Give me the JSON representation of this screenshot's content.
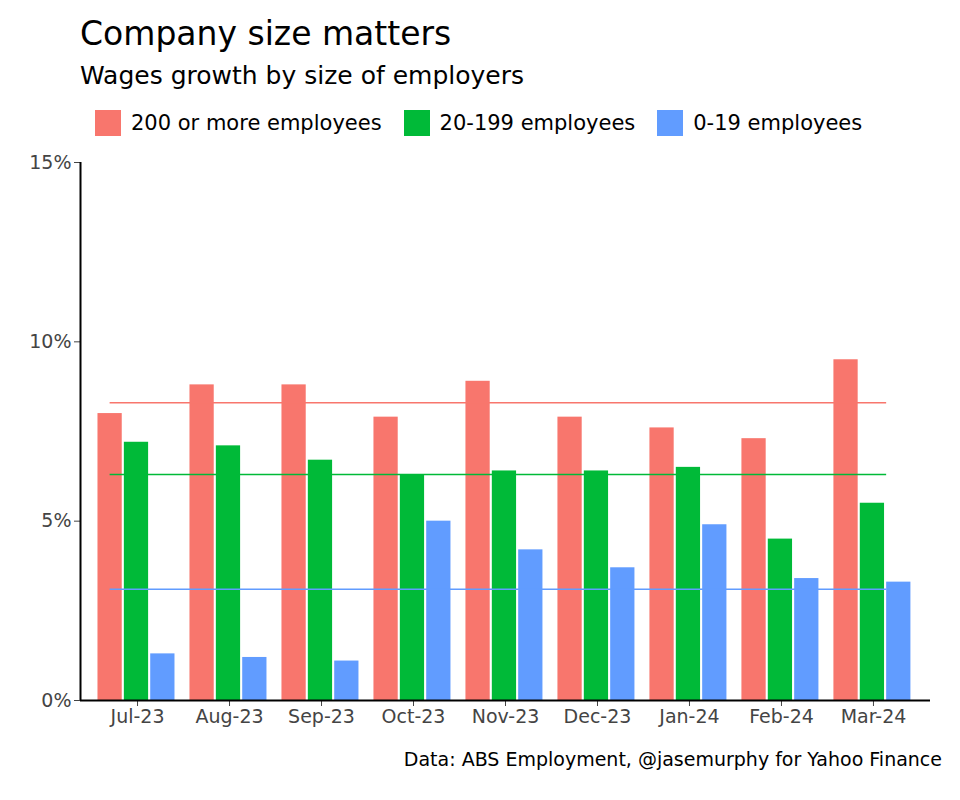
{
  "chart_data": {
    "type": "bar",
    "title": "Company size matters",
    "subtitle": "Wages growth by size of employers",
    "caption": "Data: ABS Employment, @jasemurphy for Yahoo Finance",
    "categories": [
      "Jul-23",
      "Aug-23",
      "Sep-23",
      "Oct-23",
      "Nov-23",
      "Dec-23",
      "Jan-24",
      "Feb-24",
      "Mar-24"
    ],
    "series": [
      {
        "name": "200 or more employees",
        "color": "#F8766D",
        "values": [
          8.0,
          8.8,
          8.8,
          7.9,
          8.9,
          7.9,
          7.6,
          7.3,
          9.5
        ],
        "average": 8.3
      },
      {
        "name": "20-199 employees",
        "color": "#00BA38",
        "values": [
          7.2,
          7.1,
          6.7,
          6.3,
          6.4,
          6.4,
          6.5,
          4.5,
          5.5
        ],
        "average": 6.3
      },
      {
        "name": "0-19 employees",
        "color": "#619CFF",
        "values": [
          1.3,
          1.2,
          1.1,
          5.0,
          4.2,
          3.7,
          4.9,
          3.4,
          3.3
        ],
        "average": 3.1
      }
    ],
    "ylim": [
      0,
      15
    ],
    "yticks": [
      {
        "value": 0,
        "label": "0%"
      },
      {
        "value": 5,
        "label": "5%"
      },
      {
        "value": 10,
        "label": "10%"
      },
      {
        "value": 15,
        "label": "15%"
      }
    ],
    "grid": false,
    "legend": "top"
  }
}
